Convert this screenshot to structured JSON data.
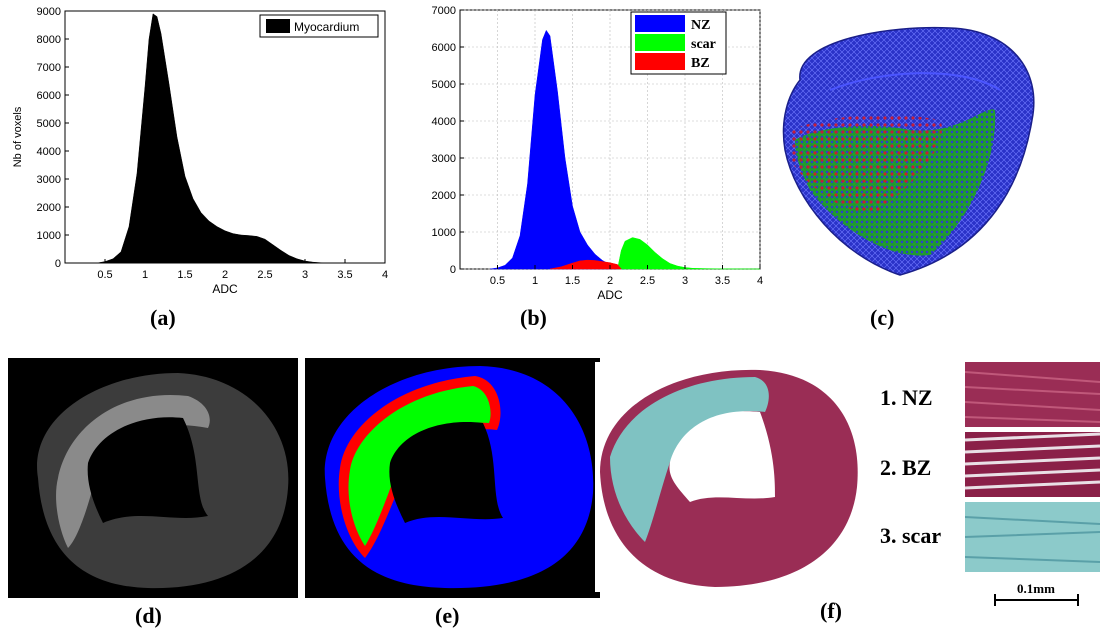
{
  "panel_labels": {
    "a": "(a)",
    "b": "(b)",
    "c": "(c)",
    "d": "(d)",
    "e": "(e)",
    "f": "(f)"
  },
  "histology": {
    "row1": "1. NZ",
    "row2": "2. BZ",
    "row3": "3. scar",
    "scale_bar": "0.1mm"
  },
  "colors": {
    "myocardium": "#000000",
    "NZ": "#0000ff",
    "scar": "#00ff00",
    "BZ": "#ff0000",
    "tissue_red": "#9a2d55",
    "tissue_cyan": "#7fc2c2"
  },
  "chart_data": [
    {
      "id": "a",
      "type": "area",
      "xlabel": "ADC",
      "ylabel": "Nb of voxels",
      "xlim": [
        0,
        4
      ],
      "ylim": [
        0,
        9000
      ],
      "xticks": [
        0.5,
        1,
        1.5,
        2,
        2.5,
        3,
        3.5,
        4
      ],
      "xtick_labels": [
        "0.5",
        "1",
        "1.5",
        "2",
        "2.5",
        "3",
        "3.5",
        "4"
      ],
      "yticks": [
        0,
        1000,
        2000,
        3000,
        4000,
        5000,
        6000,
        7000,
        8000,
        9000
      ],
      "ytick_labels": [
        "0",
        "1000",
        "2000",
        "3000",
        "4000",
        "5000",
        "6000",
        "7000",
        "8000",
        "9000"
      ],
      "legend_position": "top-right",
      "series": [
        {
          "name": "Myocardium",
          "color": "#000000",
          "x": [
            0.4,
            0.5,
            0.6,
            0.7,
            0.8,
            0.9,
            1.0,
            1.05,
            1.1,
            1.15,
            1.2,
            1.3,
            1.4,
            1.5,
            1.6,
            1.7,
            1.8,
            1.9,
            2.0,
            2.1,
            2.2,
            2.3,
            2.4,
            2.5,
            2.6,
            2.7,
            2.8,
            2.9,
            3.0,
            3.1,
            3.2,
            3.4
          ],
          "y": [
            0,
            50,
            150,
            400,
            1300,
            3200,
            6300,
            8000,
            8900,
            8800,
            8200,
            6400,
            4500,
            3100,
            2300,
            1800,
            1500,
            1300,
            1150,
            1050,
            1000,
            980,
            950,
            850,
            650,
            450,
            270,
            150,
            70,
            30,
            10,
            0
          ]
        }
      ]
    },
    {
      "id": "b",
      "type": "area",
      "xlabel": "ADC",
      "ylabel": "",
      "xlim": [
        0,
        4
      ],
      "ylim": [
        0,
        7000
      ],
      "xticks": [
        0.5,
        1,
        1.5,
        2,
        2.5,
        3,
        3.5,
        4
      ],
      "xtick_labels": [
        "0.5",
        "1",
        "1.5",
        "2",
        "2.5",
        "3",
        "3.5",
        "4"
      ],
      "yticks": [
        0,
        1000,
        2000,
        3000,
        4000,
        5000,
        6000,
        7000
      ],
      "ytick_labels": [
        "0",
        "1000",
        "2000",
        "3000",
        "4000",
        "5000",
        "6000",
        "7000"
      ],
      "grid": true,
      "legend_position": "top-right",
      "series": [
        {
          "name": "NZ",
          "color": "#0000ff",
          "x": [
            0.4,
            0.5,
            0.6,
            0.7,
            0.8,
            0.9,
            1.0,
            1.1,
            1.15,
            1.2,
            1.3,
            1.4,
            1.5,
            1.6,
            1.7,
            1.8,
            1.9,
            2.0,
            2.1,
            2.2
          ],
          "y": [
            0,
            30,
            100,
            300,
            900,
            2300,
            4700,
            6200,
            6450,
            6300,
            4800,
            3000,
            1700,
            1000,
            650,
            400,
            230,
            120,
            50,
            0
          ]
        },
        {
          "name": "scar",
          "color": "#00ff00",
          "x": [
            2.1,
            2.15,
            2.2,
            2.3,
            2.4,
            2.5,
            2.6,
            2.7,
            2.8,
            2.9,
            3.0,
            3.1,
            3.3,
            3.5,
            4.0
          ],
          "y": [
            0,
            500,
            750,
            850,
            800,
            650,
            450,
            280,
            150,
            80,
            40,
            20,
            10,
            5,
            0
          ]
        },
        {
          "name": "BZ",
          "color": "#ff0000",
          "x": [
            1.2,
            1.35,
            1.5,
            1.6,
            1.7,
            1.8,
            1.9,
            2.0,
            2.1,
            2.15
          ],
          "y": [
            0,
            60,
            160,
            220,
            240,
            230,
            200,
            170,
            120,
            0
          ]
        }
      ]
    }
  ]
}
